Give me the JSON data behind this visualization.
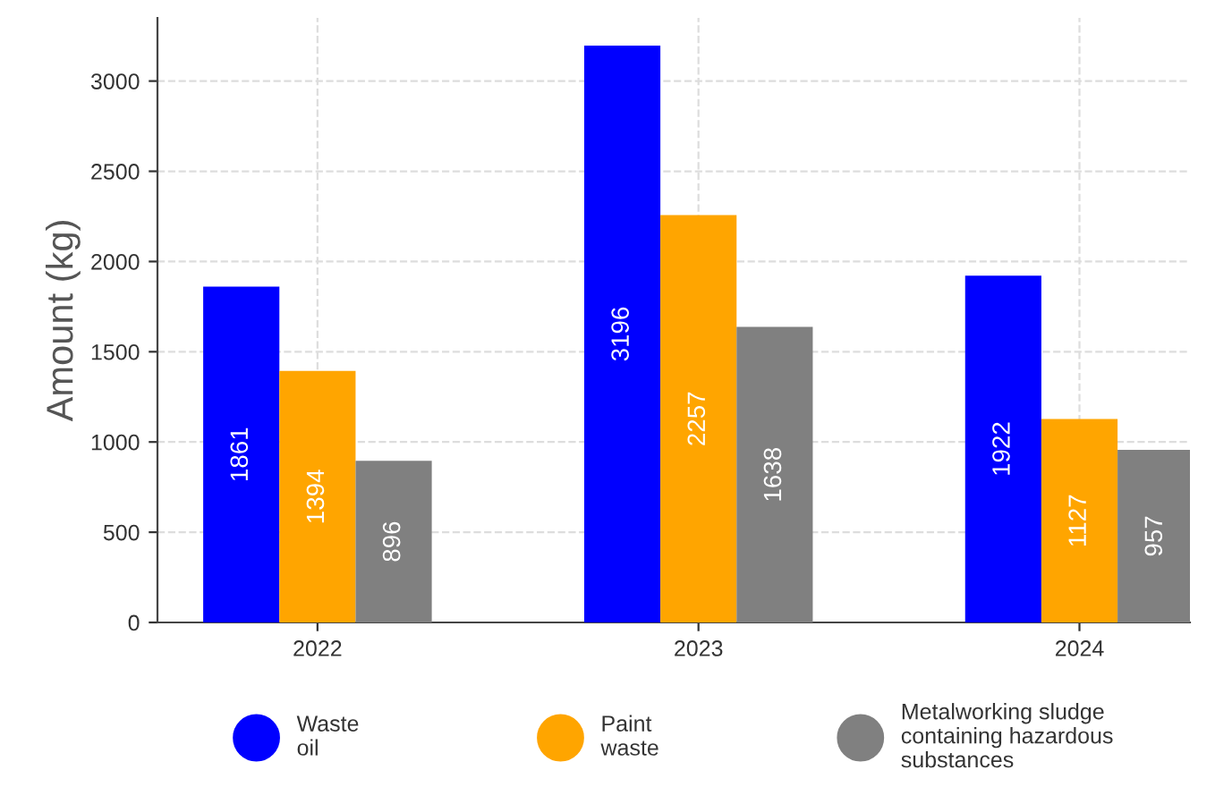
{
  "chart_data": {
    "type": "bar",
    "ylabel": "Amount (kg)",
    "categories": [
      "2022",
      "2023",
      "2024"
    ],
    "series": [
      {
        "name": "Waste\noil",
        "color": "#0000ff",
        "values": [
          1861,
          3196,
          1922
        ]
      },
      {
        "name": "Paint\nwaste",
        "color": "#ffa500",
        "values": [
          1394,
          2257,
          1127
        ]
      },
      {
        "name": "Metalworking sludge\ncontaining hazardous\nsubstances",
        "color": "#808080",
        "values": [
          896,
          1638,
          957
        ]
      }
    ],
    "ylim": [
      0,
      3350
    ],
    "yticks": [
      0,
      500,
      1000,
      1500,
      2000,
      2500,
      3000
    ],
    "grid": true,
    "legend": "bottom",
    "data_labels": true
  }
}
